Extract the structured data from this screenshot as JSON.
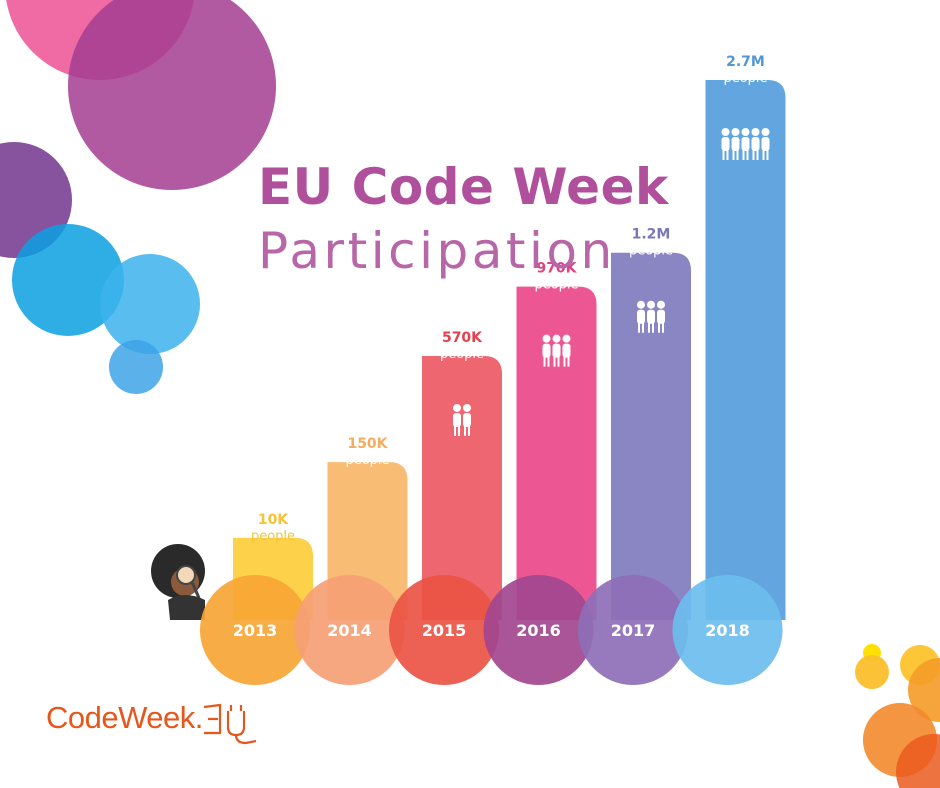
{
  "chart_data": {
    "type": "bar",
    "title": "EU Code Week",
    "subtitle": "Participation",
    "categories": [
      "2013",
      "2014",
      "2015",
      "2016",
      "2017",
      "2018"
    ],
    "values": [
      10000,
      150000,
      570000,
      970000,
      1200000,
      2700000
    ],
    "value_labels": [
      "10K",
      "150K",
      "570K",
      "970K",
      "1.2M",
      "2.7M"
    ],
    "unit_label": "people",
    "colors": {
      "bars": [
        "#fdd149",
        "#f9bc74",
        "#ee6670",
        "#ec5793",
        "#8a86c4",
        "#63a5de"
      ],
      "circles": [
        "#f7a535",
        "#f5a075",
        "#ea5444",
        "#a2478f",
        "#8e6fb7",
        "#6bbdee"
      ],
      "value_text": [
        "#f6c23a",
        "#f5ac5b",
        "#e3414e",
        "#e0427f",
        "#7c78b8",
        "#4f97d6"
      ],
      "title": "#b04f9c",
      "logo": "#e5571c"
    },
    "people_icons": [
      0,
      0,
      2,
      3,
      3,
      5
    ]
  },
  "logo": {
    "text": "CodeWeek.",
    "mark_icon": "eu-plug-icon"
  },
  "mascot_icon": "child-with-magnifier-icon"
}
